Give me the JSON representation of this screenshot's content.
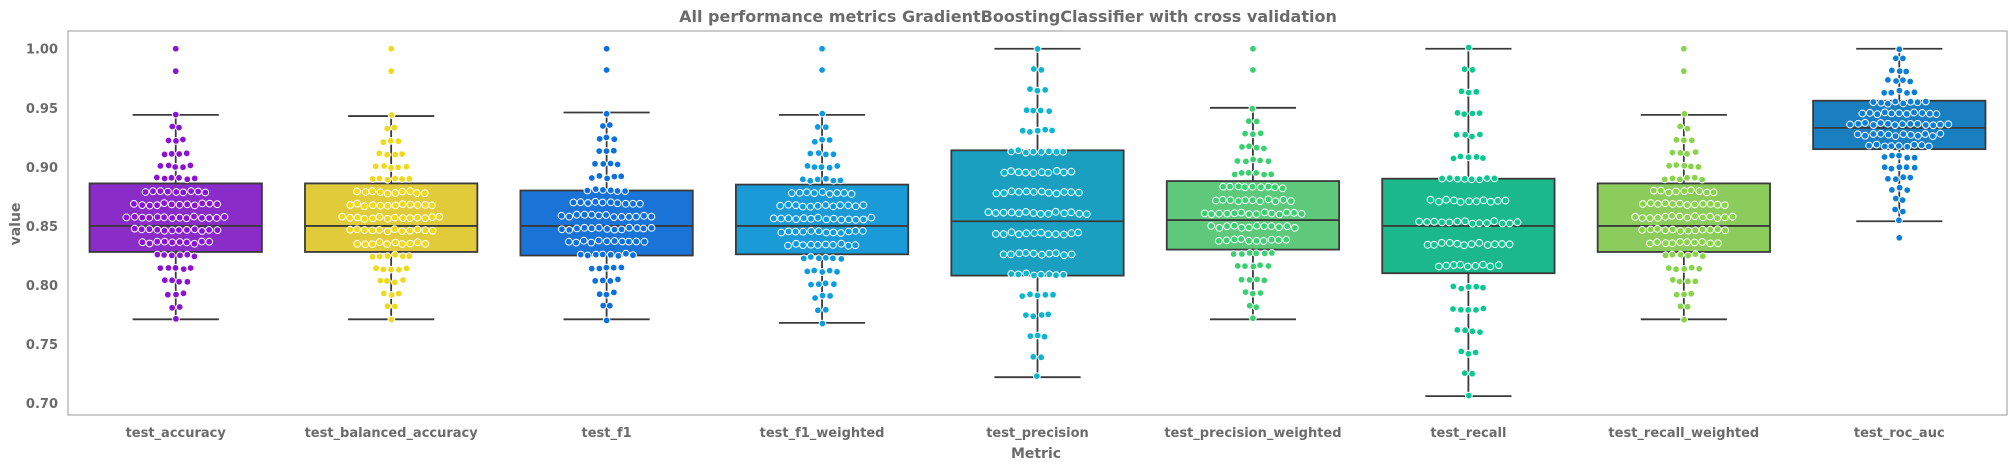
{
  "chart_data": {
    "type": "box",
    "title": "All performance metrics GradientBoostingClassifier with cross validation",
    "xlabel": "Metric",
    "ylabel": "value",
    "ylim": [
      0.69,
      1.015
    ],
    "yticks": [
      "0.70",
      "0.75",
      "0.80",
      "0.85",
      "0.90",
      "0.95",
      "1.00"
    ],
    "grid": false,
    "overlay": "swarm",
    "categories": [
      "test_accuracy",
      "test_balanced_accuracy",
      "test_f1",
      "test_f1_weighted",
      "test_precision",
      "test_precision_weighted",
      "test_recall",
      "test_recall_weighted",
      "test_roc_auc"
    ],
    "boxes": [
      {
        "name": "test_accuracy",
        "color": "#8a2cc8",
        "dot_color": "#8a12d4",
        "whisker_low": 0.771,
        "q1": 0.828,
        "median": 0.85,
        "q3": 0.886,
        "whisker_high": 0.944,
        "outliers": [
          0.981,
          1.0
        ]
      },
      {
        "name": "test_balanced_accuracy",
        "color": "#e0cb3a",
        "dot_color": "#f0d91a",
        "whisker_low": 0.771,
        "q1": 0.828,
        "median": 0.85,
        "q3": 0.886,
        "whisker_high": 0.943,
        "outliers": [
          0.981,
          1.0
        ]
      },
      {
        "name": "test_f1",
        "color": "#1a73d6",
        "dot_color": "#0b6fe0",
        "whisker_low": 0.771,
        "q1": 0.825,
        "median": 0.85,
        "q3": 0.88,
        "whisker_high": 0.946,
        "outliers": [
          0.982,
          1.0
        ]
      },
      {
        "name": "test_f1_weighted",
        "color": "#1a9ad6",
        "dot_color": "#0b9be0",
        "whisker_low": 0.768,
        "q1": 0.826,
        "median": 0.85,
        "q3": 0.885,
        "whisker_high": 0.944,
        "outliers": [
          0.982,
          1.0
        ]
      },
      {
        "name": "test_precision",
        "color": "#1a9fc0",
        "dot_color": "#0bb5d0",
        "whisker_low": 0.722,
        "q1": 0.808,
        "median": 0.854,
        "q3": 0.914,
        "whisker_high": 1.0,
        "outliers": []
      },
      {
        "name": "test_precision_weighted",
        "color": "#5ec97a",
        "dot_color": "#3ad070",
        "whisker_low": 0.771,
        "q1": 0.83,
        "median": 0.855,
        "q3": 0.888,
        "whisker_high": 0.95,
        "outliers": [
          0.982,
          1.0
        ]
      },
      {
        "name": "test_recall",
        "color": "#1ab88a",
        "dot_color": "#0bc890",
        "whisker_low": 0.706,
        "q1": 0.81,
        "median": 0.85,
        "q3": 0.89,
        "whisker_high": 1.0,
        "outliers": []
      },
      {
        "name": "test_recall_weighted",
        "color": "#8ccc5c",
        "dot_color": "#86d448",
        "whisker_low": 0.771,
        "q1": 0.828,
        "median": 0.85,
        "q3": 0.886,
        "whisker_high": 0.944,
        "outliers": [
          0.981,
          1.0
        ]
      },
      {
        "name": "test_roc_auc",
        "color": "#1a7fc0",
        "dot_color": "#0b7fd8",
        "whisker_low": 0.854,
        "q1": 0.915,
        "median": 0.933,
        "q3": 0.956,
        "whisker_high": 1.0,
        "outliers": [
          0.84
        ]
      }
    ]
  }
}
